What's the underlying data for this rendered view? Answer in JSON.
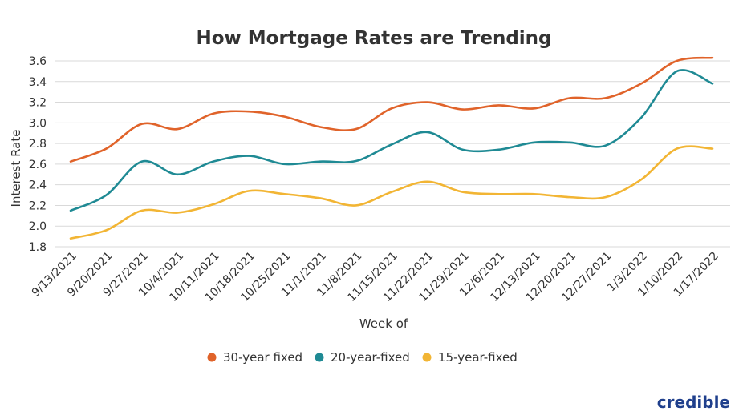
{
  "brand": {
    "name": "credible",
    "color": "#1f3f8c"
  },
  "chart_data": {
    "type": "line",
    "title": "How Mortgage Rates are Trending",
    "xlabel": "Week of",
    "ylabel": "Interest Rate",
    "ylim": [
      1.8,
      3.6
    ],
    "yticks": [
      "1.8",
      "2.0",
      "2.2",
      "2.4",
      "2.6",
      "2.8",
      "3.0",
      "3.2",
      "3.4",
      "3.6"
    ],
    "grid": "horizontal",
    "legend": "bottom-center",
    "categories": [
      "9/13/2021",
      "9/20/2021",
      "9/27/2021",
      "10/4/2021",
      "10/11/2021",
      "10/18/2021",
      "10/25/2021",
      "11/1/2021",
      "11/8/2021",
      "11/15/2021",
      "11/22/2021",
      "11/29/2021",
      "12/6/2021",
      "12/13/2021",
      "12/20/2021",
      "12/27/2021",
      "1/3/2022",
      "1/10/2022",
      "1/17/2022"
    ],
    "series": [
      {
        "name": "30-year fixed",
        "color": "#e0632a",
        "values": [
          2.625,
          2.75,
          2.99,
          2.94,
          3.09,
          3.11,
          3.06,
          2.96,
          2.94,
          3.14,
          3.2,
          3.13,
          3.17,
          3.14,
          3.24,
          3.24,
          3.38,
          3.6,
          3.63
        ]
      },
      {
        "name": "20-year-fixed",
        "color": "#1f8a94",
        "values": [
          2.15,
          2.3,
          2.625,
          2.5,
          2.625,
          2.68,
          2.6,
          2.625,
          2.63,
          2.79,
          2.91,
          2.74,
          2.74,
          2.81,
          2.81,
          2.78,
          3.05,
          3.5,
          3.38
        ]
      },
      {
        "name": "15-year-fixed",
        "color": "#f2b534",
        "values": [
          1.88,
          1.96,
          2.15,
          2.13,
          2.21,
          2.34,
          2.31,
          2.27,
          2.2,
          2.33,
          2.43,
          2.33,
          2.31,
          2.31,
          2.28,
          2.28,
          2.45,
          2.75,
          2.75
        ]
      }
    ]
  }
}
